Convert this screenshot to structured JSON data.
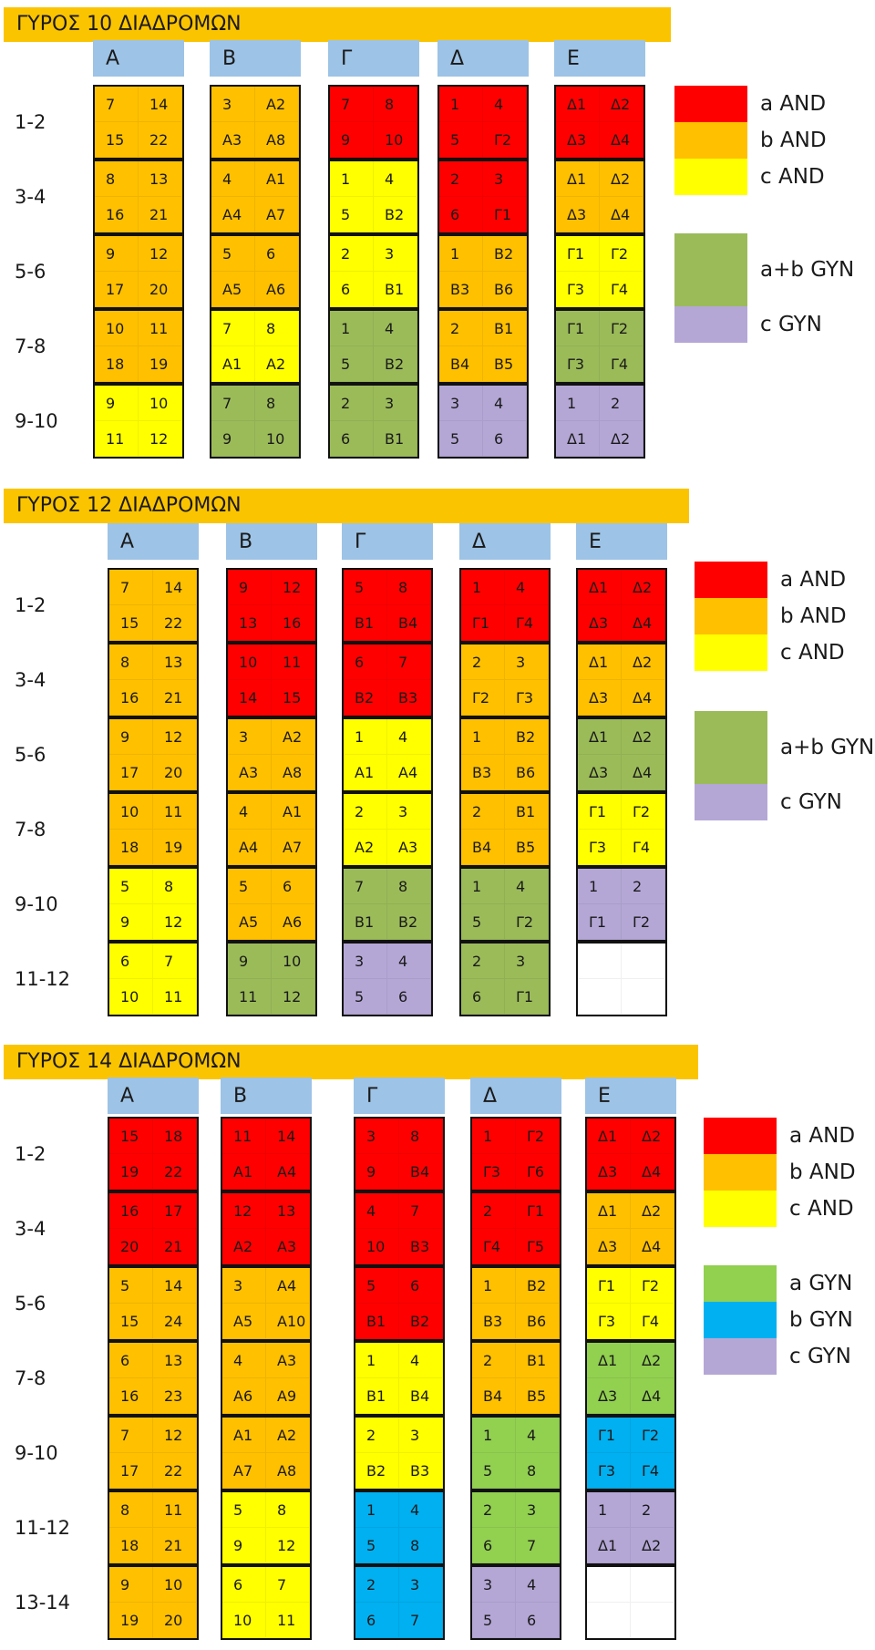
{
  "colors": {
    "a_and": "#ff0000",
    "b_and": "#ffc000",
    "c_and": "#ffff00",
    "ab_gyn": "#9bbb59",
    "a_gyn": "#92d050",
    "b_gyn": "#00b0f0",
    "c_gyn": "#b4a7d6",
    "empty": "#ffffff",
    "title": "#fbc400",
    "header": "#9dc3e6"
  },
  "sections": [
    {
      "title": "ΓΥΡΟΣ 10 ΔΙΑΔΡΟΜΩΝ",
      "columns": [
        "Α",
        "Β",
        "Γ",
        "Δ",
        "Ε"
      ],
      "rows": [
        "1-2",
        "3-4",
        "5-6",
        "7-8",
        "9-10"
      ],
      "grid": [
        [
          {
            "c": "b_and",
            "v": [
              "7",
              "14",
              "15",
              "22"
            ]
          },
          {
            "c": "b_and",
            "v": [
              "3",
              "Α2",
              "Α3",
              "Α8"
            ]
          },
          {
            "c": "a_and",
            "v": [
              "7",
              "8",
              "9",
              "10"
            ]
          },
          {
            "c": "a_and",
            "v": [
              "1",
              "4",
              "5",
              "Γ2"
            ]
          },
          {
            "c": "a_and",
            "v": [
              "Δ1",
              "Δ2",
              "Δ3",
              "Δ4"
            ]
          }
        ],
        [
          {
            "c": "b_and",
            "v": [
              "8",
              "13",
              "16",
              "21"
            ]
          },
          {
            "c": "b_and",
            "v": [
              "4",
              "Α1",
              "Α4",
              "Α7"
            ]
          },
          {
            "c": "c_and",
            "v": [
              "1",
              "4",
              "5",
              "Β2"
            ]
          },
          {
            "c": "a_and",
            "v": [
              "2",
              "3",
              "6",
              "Γ1"
            ]
          },
          {
            "c": "b_and",
            "v": [
              "Δ1",
              "Δ2",
              "Δ3",
              "Δ4"
            ]
          }
        ],
        [
          {
            "c": "b_and",
            "v": [
              "9",
              "12",
              "17",
              "20"
            ]
          },
          {
            "c": "b_and",
            "v": [
              "5",
              "6",
              "Α5",
              "Α6"
            ]
          },
          {
            "c": "c_and",
            "v": [
              "2",
              "3",
              "6",
              "Β1"
            ]
          },
          {
            "c": "b_and",
            "v": [
              "1",
              "Β2",
              "Β3",
              "Β6"
            ]
          },
          {
            "c": "c_and",
            "v": [
              "Γ1",
              "Γ2",
              "Γ3",
              "Γ4"
            ]
          }
        ],
        [
          {
            "c": "b_and",
            "v": [
              "10",
              "11",
              "18",
              "19"
            ]
          },
          {
            "c": "c_and",
            "v": [
              "7",
              "8",
              "Α1",
              "Α2"
            ]
          },
          {
            "c": "ab_gyn",
            "v": [
              "1",
              "4",
              "5",
              "Β2"
            ]
          },
          {
            "c": "b_and",
            "v": [
              "2",
              "Β1",
              "Β4",
              "Β5"
            ]
          },
          {
            "c": "ab_gyn",
            "v": [
              "Γ1",
              "Γ2",
              "Γ3",
              "Γ4"
            ]
          }
        ],
        [
          {
            "c": "c_and",
            "v": [
              "9",
              "10",
              "11",
              "12"
            ]
          },
          {
            "c": "ab_gyn",
            "v": [
              "7",
              "8",
              "9",
              "10"
            ]
          },
          {
            "c": "ab_gyn",
            "v": [
              "2",
              "3",
              "6",
              "Β1"
            ]
          },
          {
            "c": "c_gyn",
            "v": [
              "3",
              "4",
              "5",
              "6"
            ]
          },
          {
            "c": "c_gyn",
            "v": [
              "1",
              "2",
              "Δ1",
              "Δ2"
            ]
          }
        ]
      ],
      "legend": [
        {
          "c": "a_and",
          "label": "a AND"
        },
        {
          "c": "b_and",
          "label": "b AND"
        },
        {
          "c": "c_and",
          "label": "c AND"
        },
        {
          "c": "ab_gyn",
          "label": "a+b GYN"
        },
        {
          "c": "c_gyn",
          "label": "c GYN"
        }
      ]
    },
    {
      "title": "ΓΥΡΟΣ 12 ΔΙΑΔΡΟΜΩΝ",
      "columns": [
        "Α",
        "Β",
        "Γ",
        "Δ",
        "Ε"
      ],
      "rows": [
        "1-2",
        "3-4",
        "5-6",
        "7-8",
        "9-10",
        "11-12"
      ],
      "grid": [
        [
          {
            "c": "b_and",
            "v": [
              "7",
              "14",
              "15",
              "22"
            ]
          },
          {
            "c": "a_and",
            "v": [
              "9",
              "12",
              "13",
              "16"
            ]
          },
          {
            "c": "a_and",
            "v": [
              "5",
              "8",
              "Β1",
              "Β4"
            ]
          },
          {
            "c": "a_and",
            "v": [
              "1",
              "4",
              "Γ1",
              "Γ4"
            ]
          },
          {
            "c": "a_and",
            "v": [
              "Δ1",
              "Δ2",
              "Δ3",
              "Δ4"
            ]
          }
        ],
        [
          {
            "c": "b_and",
            "v": [
              "8",
              "13",
              "16",
              "21"
            ]
          },
          {
            "c": "a_and",
            "v": [
              "10",
              "11",
              "14",
              "15"
            ]
          },
          {
            "c": "a_and",
            "v": [
              "6",
              "7",
              "Β2",
              "Β3"
            ]
          },
          {
            "c": "b_and",
            "v": [
              "2",
              "3",
              "Γ2",
              "Γ3"
            ]
          },
          {
            "c": "b_and",
            "v": [
              "Δ1",
              "Δ2",
              "Δ3",
              "Δ4"
            ]
          }
        ],
        [
          {
            "c": "b_and",
            "v": [
              "9",
              "12",
              "17",
              "20"
            ]
          },
          {
            "c": "b_and",
            "v": [
              "3",
              "Α2",
              "Α3",
              "Α8"
            ]
          },
          {
            "c": "c_and",
            "v": [
              "1",
              "4",
              "Α1",
              "Α4"
            ]
          },
          {
            "c": "b_and",
            "v": [
              "1",
              "Β2",
              "Β3",
              "Β6"
            ]
          },
          {
            "c": "ab_gyn",
            "v": [
              "Δ1",
              "Δ2",
              "Δ3",
              "Δ4"
            ]
          }
        ],
        [
          {
            "c": "b_and",
            "v": [
              "10",
              "11",
              "18",
              "19"
            ]
          },
          {
            "c": "b_and",
            "v": [
              "4",
              "Α1",
              "Α4",
              "Α7"
            ]
          },
          {
            "c": "c_and",
            "v": [
              "2",
              "3",
              "Α2",
              "Α3"
            ]
          },
          {
            "c": "b_and",
            "v": [
              "2",
              "Β1",
              "Β4",
              "Β5"
            ]
          },
          {
            "c": "c_and",
            "v": [
              "Γ1",
              "Γ2",
              "Γ3",
              "Γ4"
            ]
          }
        ],
        [
          {
            "c": "c_and",
            "v": [
              "5",
              "8",
              "9",
              "12"
            ]
          },
          {
            "c": "b_and",
            "v": [
              "5",
              "6",
              "Α5",
              "Α6"
            ]
          },
          {
            "c": "ab_gyn",
            "v": [
              "7",
              "8",
              "Β1",
              "Β2"
            ]
          },
          {
            "c": "ab_gyn",
            "v": [
              "1",
              "4",
              "5",
              "Γ2"
            ]
          },
          {
            "c": "c_gyn",
            "v": [
              "1",
              "2",
              "Γ1",
              "Γ2"
            ]
          }
        ],
        [
          {
            "c": "c_and",
            "v": [
              "6",
              "7",
              "10",
              "11"
            ]
          },
          {
            "c": "ab_gyn",
            "v": [
              "9",
              "10",
              "11",
              "12"
            ]
          },
          {
            "c": "c_gyn",
            "v": [
              "3",
              "4",
              "5",
              "6"
            ]
          },
          {
            "c": "ab_gyn",
            "v": [
              "2",
              "3",
              "6",
              "Γ1"
            ]
          },
          {
            "c": "empty",
            "v": [
              "",
              "",
              "",
              ""
            ]
          }
        ]
      ],
      "legend": [
        {
          "c": "a_and",
          "label": "a AND"
        },
        {
          "c": "b_and",
          "label": "b AND"
        },
        {
          "c": "c_and",
          "label": "c AND"
        },
        {
          "c": "ab_gyn",
          "label": "a+b GYN"
        },
        {
          "c": "c_gyn",
          "label": "c GYN"
        }
      ]
    },
    {
      "title": "ΓΥΡΟΣ 14 ΔΙΑΔΡΟΜΩΝ",
      "columns": [
        "Α",
        "Β",
        "Γ",
        "Δ",
        "Ε"
      ],
      "rows": [
        "1-2",
        "3-4",
        "5-6",
        "7-8",
        "9-10",
        "11-12",
        "13-14"
      ],
      "grid": [
        [
          {
            "c": "a_and",
            "v": [
              "15",
              "18",
              "19",
              "22"
            ]
          },
          {
            "c": "a_and",
            "v": [
              "11",
              "14",
              "Α1",
              "Α4"
            ]
          },
          {
            "c": "a_and",
            "v": [
              "3",
              "8",
              "9",
              "Β4"
            ]
          },
          {
            "c": "a_and",
            "v": [
              "1",
              "Γ2",
              "Γ3",
              "Γ6"
            ]
          },
          {
            "c": "a_and",
            "v": [
              "Δ1",
              "Δ2",
              "Δ3",
              "Δ4"
            ]
          }
        ],
        [
          {
            "c": "a_and",
            "v": [
              "16",
              "17",
              "20",
              "21"
            ]
          },
          {
            "c": "a_and",
            "v": [
              "12",
              "13",
              "Α2",
              "Α3"
            ]
          },
          {
            "c": "a_and",
            "v": [
              "4",
              "7",
              "10",
              "Β3"
            ]
          },
          {
            "c": "a_and",
            "v": [
              "2",
              "Γ1",
              "Γ4",
              "Γ5"
            ]
          },
          {
            "c": "b_and",
            "v": [
              "Δ1",
              "Δ2",
              "Δ3",
              "Δ4"
            ]
          }
        ],
        [
          {
            "c": "b_and",
            "v": [
              "5",
              "14",
              "15",
              "24"
            ]
          },
          {
            "c": "b_and",
            "v": [
              "3",
              "Α4",
              "Α5",
              "Α10"
            ]
          },
          {
            "c": "a_and",
            "v": [
              "5",
              "6",
              "Β1",
              "Β2"
            ]
          },
          {
            "c": "b_and",
            "v": [
              "1",
              "Β2",
              "Β3",
              "Β6"
            ]
          },
          {
            "c": "c_and",
            "v": [
              "Γ1",
              "Γ2",
              "Γ3",
              "Γ4"
            ]
          }
        ],
        [
          {
            "c": "b_and",
            "v": [
              "6",
              "13",
              "16",
              "23"
            ]
          },
          {
            "c": "b_and",
            "v": [
              "4",
              "Α3",
              "Α6",
              "Α9"
            ]
          },
          {
            "c": "c_and",
            "v": [
              "1",
              "4",
              "Β1",
              "Β4"
            ]
          },
          {
            "c": "b_and",
            "v": [
              "2",
              "Β1",
              "Β4",
              "Β5"
            ]
          },
          {
            "c": "a_gyn",
            "v": [
              "Δ1",
              "Δ2",
              "Δ3",
              "Δ4"
            ]
          }
        ],
        [
          {
            "c": "b_and",
            "v": [
              "7",
              "12",
              "17",
              "22"
            ]
          },
          {
            "c": "b_and",
            "v": [
              "Α1",
              "Α2",
              "Α7",
              "Α8"
            ]
          },
          {
            "c": "c_and",
            "v": [
              "2",
              "3",
              "Β2",
              "Β3"
            ]
          },
          {
            "c": "a_gyn",
            "v": [
              "1",
              "4",
              "5",
              "8"
            ]
          },
          {
            "c": "b_gyn",
            "v": [
              "Γ1",
              "Γ2",
              "Γ3",
              "Γ4"
            ]
          }
        ],
        [
          {
            "c": "b_and",
            "v": [
              "8",
              "11",
              "18",
              "21"
            ]
          },
          {
            "c": "c_and",
            "v": [
              "5",
              "8",
              "9",
              "12"
            ]
          },
          {
            "c": "b_gyn",
            "v": [
              "1",
              "4",
              "5",
              "8"
            ]
          },
          {
            "c": "a_gyn",
            "v": [
              "2",
              "3",
              "6",
              "7"
            ]
          },
          {
            "c": "c_gyn",
            "v": [
              "1",
              "2",
              "Δ1",
              "Δ2"
            ]
          }
        ],
        [
          {
            "c": "b_and",
            "v": [
              "9",
              "10",
              "19",
              "20"
            ]
          },
          {
            "c": "c_and",
            "v": [
              "6",
              "7",
              "10",
              "11"
            ]
          },
          {
            "c": "b_gyn",
            "v": [
              "2",
              "3",
              "6",
              "7"
            ]
          },
          {
            "c": "c_gyn",
            "v": [
              "3",
              "4",
              "5",
              "6"
            ]
          },
          {
            "c": "empty",
            "v": [
              "",
              "",
              "",
              ""
            ]
          }
        ]
      ],
      "legend": [
        {
          "c": "a_and",
          "label": "a AND"
        },
        {
          "c": "b_and",
          "label": "b AND"
        },
        {
          "c": "c_and",
          "label": "c AND"
        },
        {
          "c": "a_gyn",
          "label": "a GYN"
        },
        {
          "c": "b_gyn",
          "label": "b GYN"
        },
        {
          "c": "c_gyn",
          "label": "c GYN"
        }
      ]
    }
  ]
}
